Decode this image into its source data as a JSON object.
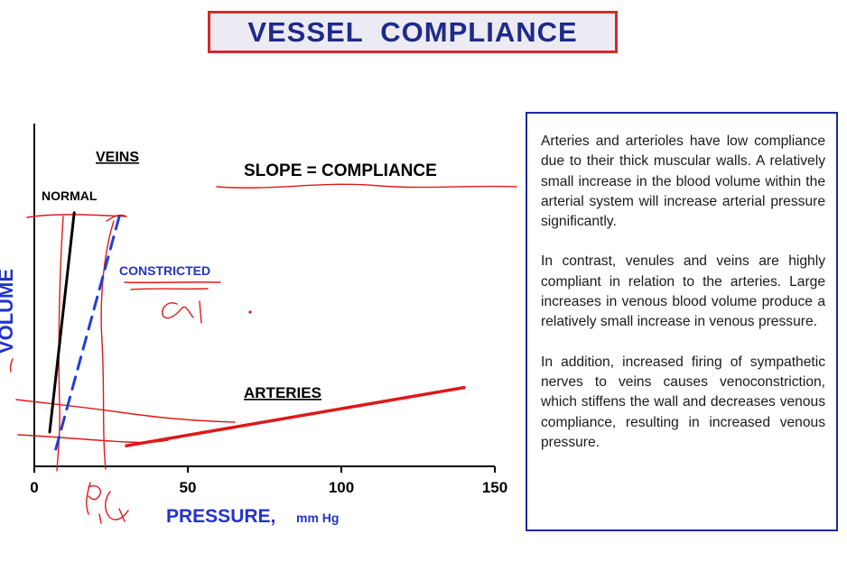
{
  "title": "VESSEL  COMPLIANCE",
  "info_paragraphs": [
    "Arteries and arterioles have low compliance due to their thick muscular walls.  A relatively small increase in the blood volume within the arterial system will increase arterial pressure significantly.",
    "In contrast, venules and veins are highly compliant in relation to the arteries.  Large increases in venous blood volume produce a relatively small increase in venous pressure.",
    "In addition, increased firing of sympathetic nerves to veins causes venoconstriction, which stiffens the wall and decreases venous compliance, resulting in increased venous pressure."
  ],
  "chart_data": {
    "type": "line",
    "xlabel": "PRESSURE,",
    "xlabel_units": "mm Hg",
    "ylabel": "VOLUME",
    "xlim": [
      0,
      150
    ],
    "x_ticks": [
      0,
      50,
      100,
      150
    ],
    "annotations": {
      "veins": "VEINS",
      "slope": "SLOPE = COMPLIANCE",
      "normal": "NORMAL",
      "constricted": "CONSTRICTED",
      "arteries": "ARTERIES"
    },
    "colors": {
      "axis": "#000000",
      "normal": "#000000",
      "constricted": "#1f3fd6",
      "arteries": "#e01818",
      "ink": "#e01818",
      "label_blue": "#2233cc"
    },
    "series": [
      {
        "name": "NORMAL",
        "style": "solid",
        "color": "#000000",
        "x": [
          5,
          13
        ],
        "y": [
          0.1,
          0.74
        ]
      },
      {
        "name": "CONSTRICTED",
        "style": "dashed",
        "color": "#1f3fd6",
        "x": [
          7,
          28
        ],
        "y": [
          0.05,
          0.74
        ]
      },
      {
        "name": "ARTERIES",
        "style": "solid",
        "color": "#e01818",
        "x": [
          30,
          140
        ],
        "y": [
          0.06,
          0.23
        ]
      }
    ]
  }
}
